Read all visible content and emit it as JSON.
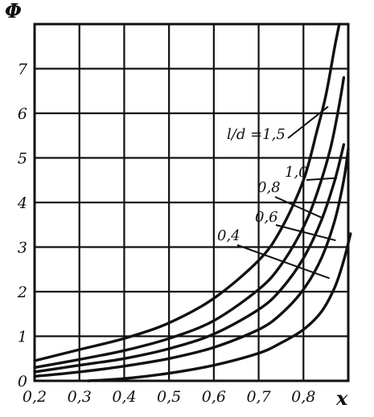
{
  "chart_data": {
    "type": "line",
    "title": "",
    "xlabel": "x",
    "ylabel": "Φ",
    "xlim": [
      0.2,
      0.9
    ],
    "ylim": [
      0,
      8
    ],
    "grid": true,
    "x_ticks": [
      "0,2",
      "0,3",
      "0,4",
      "0,5",
      "0,6",
      "0,7",
      "0,8"
    ],
    "y_ticks": [
      "0",
      "1",
      "2",
      "3",
      "4",
      "5",
      "6",
      "7"
    ],
    "parameter_label": "l/d",
    "series": [
      {
        "name": "1,5",
        "label_text": "l/d =1,5",
        "x": [
          0.2,
          0.3,
          0.4,
          0.5,
          0.6,
          0.7,
          0.75,
          0.8,
          0.83,
          0.85,
          0.87,
          0.88
        ],
        "y": [
          0.45,
          0.7,
          0.95,
          1.3,
          1.85,
          2.7,
          3.4,
          4.5,
          5.6,
          6.4,
          7.5,
          8.0
        ]
      },
      {
        "name": "1,0",
        "label_text": "1,0",
        "x": [
          0.2,
          0.3,
          0.4,
          0.5,
          0.6,
          0.7,
          0.75,
          0.8,
          0.83,
          0.86,
          0.88,
          0.89
        ],
        "y": [
          0.3,
          0.48,
          0.68,
          0.95,
          1.35,
          2.05,
          2.6,
          3.45,
          4.2,
          5.2,
          6.2,
          6.8
        ]
      },
      {
        "name": "0,8",
        "label_text": "0,8",
        "x": [
          0.2,
          0.3,
          0.4,
          0.5,
          0.6,
          0.7,
          0.75,
          0.8,
          0.84,
          0.87,
          0.89
        ],
        "y": [
          0.2,
          0.35,
          0.5,
          0.72,
          1.05,
          1.6,
          2.05,
          2.75,
          3.6,
          4.5,
          5.3
        ]
      },
      {
        "name": "0,6",
        "label_text": "0,6",
        "x": [
          0.2,
          0.3,
          0.4,
          0.5,
          0.6,
          0.7,
          0.75,
          0.8,
          0.84,
          0.87,
          0.89,
          0.9
        ],
        "y": [
          0.1,
          0.2,
          0.33,
          0.5,
          0.75,
          1.15,
          1.5,
          2.05,
          2.75,
          3.6,
          4.5,
          5.2
        ]
      },
      {
        "name": "0,4",
        "label_text": "0,4",
        "x": [
          0.32,
          0.4,
          0.5,
          0.6,
          0.7,
          0.75,
          0.8,
          0.84,
          0.87,
          0.89,
          0.905
        ],
        "y": [
          0.0,
          0.05,
          0.17,
          0.35,
          0.62,
          0.85,
          1.15,
          1.55,
          2.1,
          2.7,
          3.3
        ]
      }
    ]
  }
}
